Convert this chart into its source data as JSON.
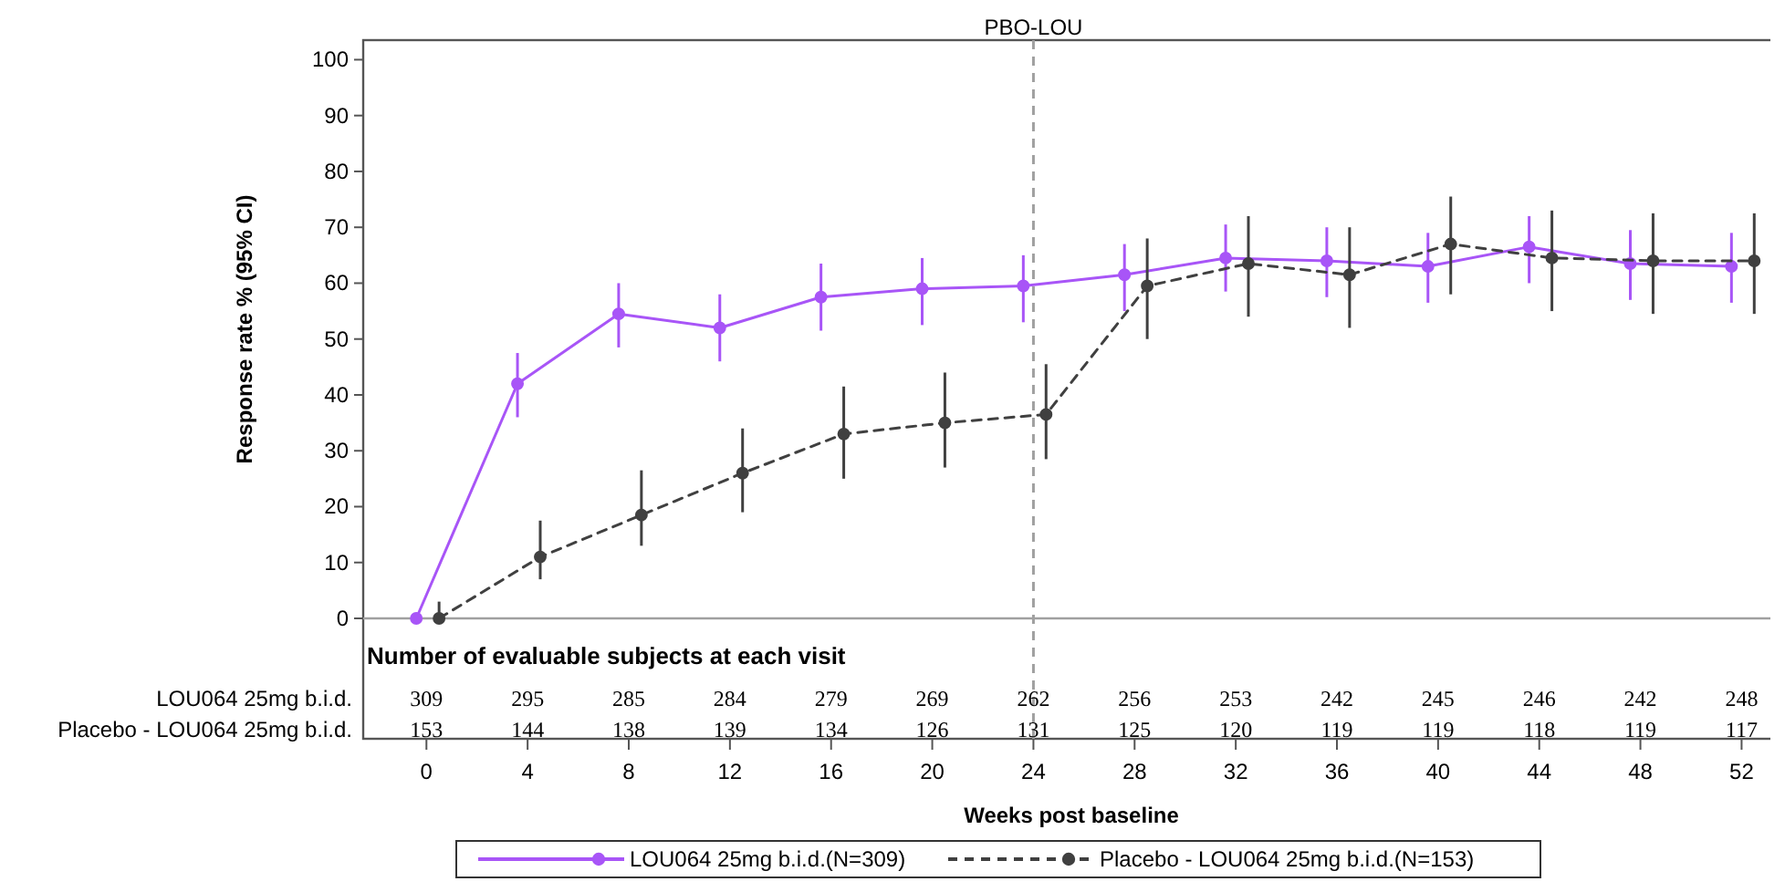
{
  "chart_data": {
    "type": "line",
    "xlabel": "Weeks post baseline",
    "ylabel": "Response rate % (95% CI)",
    "xlim": [
      -2.5,
      53.5
    ],
    "xticks": [
      0,
      4,
      8,
      12,
      16,
      20,
      24,
      28,
      32,
      36,
      40,
      44,
      48,
      52
    ],
    "ylim": [
      0,
      103.5
    ],
    "yticks": [
      0,
      10,
      20,
      30,
      40,
      50,
      60,
      70,
      80,
      90,
      100
    ],
    "grid": false,
    "legend": "bottom",
    "marker": "circle",
    "series": [
      {
        "name": "LOU064 25mg b.i.d.(N=309)",
        "color": "#a855f7",
        "line_style": "solid",
        "x": [
          -0.4,
          3.6,
          7.6,
          11.6,
          15.6,
          19.6,
          23.6,
          27.6,
          31.6,
          35.6,
          39.6,
          43.6,
          47.6,
          51.6
        ],
        "values": [
          0,
          42,
          54.5,
          52,
          57.5,
          59,
          59.5,
          61.5,
          64.5,
          64,
          63,
          66.5,
          63.5,
          63
        ],
        "errors": [
          null,
          [
            36,
            47.5
          ],
          [
            48.5,
            60
          ],
          [
            46,
            58
          ],
          [
            51.5,
            63.5
          ],
          [
            52.5,
            64.5
          ],
          [
            53,
            65
          ],
          [
            55,
            67
          ],
          [
            58.5,
            70.5
          ],
          [
            57.5,
            70
          ],
          [
            56.5,
            69
          ],
          [
            60,
            72
          ],
          [
            57,
            69.5
          ],
          [
            56.5,
            69
          ]
        ]
      },
      {
        "name": "Placebo - LOU064 25mg b.i.d.(N=153)",
        "color": "#404040",
        "line_style": "dashed",
        "x": [
          0.5,
          4.5,
          8.5,
          12.5,
          16.5,
          20.5,
          24.5,
          28.5,
          32.5,
          36.5,
          40.5,
          44.5,
          48.5,
          52.5
        ],
        "values": [
          0,
          11,
          18.5,
          26,
          33,
          35,
          36.5,
          59.5,
          63.5,
          61.5,
          67,
          64.5,
          64,
          64
        ],
        "errors": [
          [
            0,
            3
          ],
          [
            7,
            17.5
          ],
          [
            13,
            26.5
          ],
          [
            19,
            34
          ],
          [
            25,
            41.5
          ],
          [
            27,
            44
          ],
          [
            28.5,
            45.5
          ],
          [
            50,
            68
          ],
          [
            54,
            72
          ],
          [
            52,
            70
          ],
          [
            58,
            75.5
          ],
          [
            55,
            73
          ],
          [
            54.5,
            72.5
          ],
          [
            54.5,
            72.5
          ]
        ]
      }
    ],
    "ref_lines": [
      {
        "axis": "x",
        "value": 24,
        "label": "PBO-LOU",
        "color": "#a0a0a0",
        "line_style": "dashed"
      },
      {
        "axis": "y",
        "value": 0,
        "color": "#a0a0a0",
        "line_style": "solid"
      }
    ],
    "annotations": [
      "Number of evaluable subjects at each visit",
      "LOU064 25mg b.i.d.",
      "Placebo - LOU064 25mg b.i.d.",
      "309",
      "295",
      "285",
      "284",
      "279",
      "269",
      "262",
      "256",
      "253",
      "242",
      "245",
      "246",
      "242",
      "248",
      "153",
      "144",
      "138",
      "139",
      "134",
      "126",
      "131",
      "125",
      "120",
      "119",
      "119",
      "118",
      "119",
      "117"
    ]
  }
}
